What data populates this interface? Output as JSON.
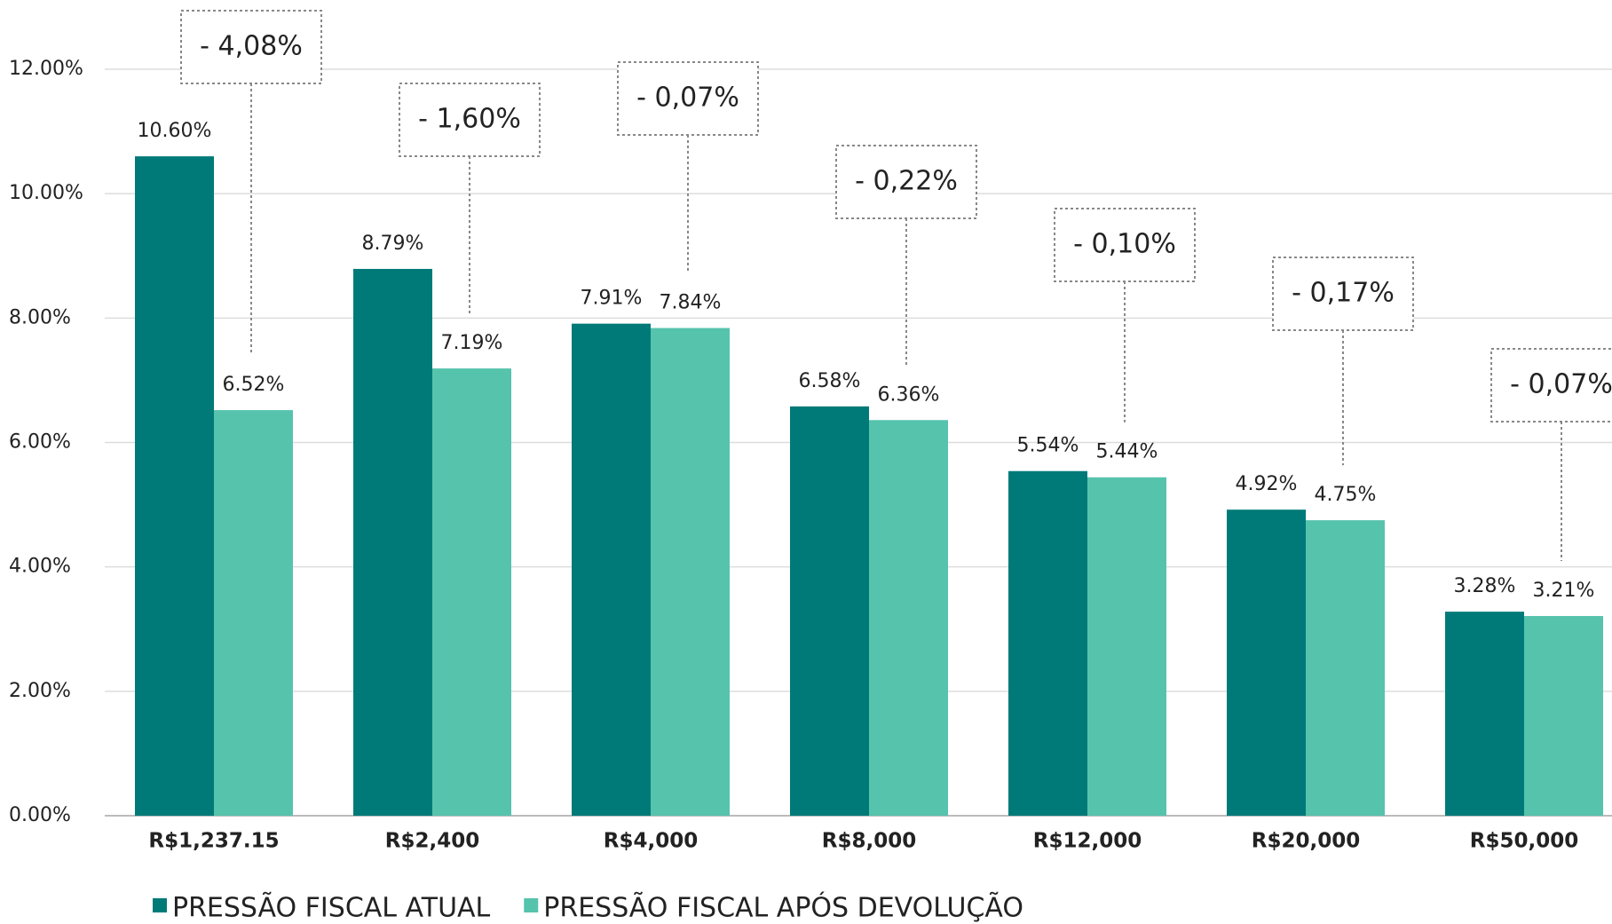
{
  "chart_data": {
    "type": "bar",
    "categories": [
      "R$1,237.15",
      "R$2,400",
      "R$4,000",
      "R$8,000",
      "R$12,000",
      "R$20,000",
      "R$50,000"
    ],
    "series": [
      {
        "name": "PRESSÃO FISCAL ATUAL",
        "color": "#007a78",
        "values": [
          10.6,
          8.79,
          7.91,
          6.58,
          5.54,
          4.92,
          3.28
        ],
        "value_labels": [
          "10.60%",
          "8.79%",
          "7.91%",
          "6.58%",
          "5.54%",
          "4.92%",
          "3.28%"
        ]
      },
      {
        "name": "PRESSÃO FISCAL APÓS DEVOLUÇÃO",
        "color": "#56c3ad",
        "values": [
          6.52,
          7.19,
          7.84,
          6.36,
          5.44,
          4.75,
          3.21
        ],
        "value_labels": [
          "6.52%",
          "7.19%",
          "7.84%",
          "6.36%",
          "5.44%",
          "4.75%",
          "3.21%"
        ]
      }
    ],
    "annotations": [
      "- 4,08%",
      "- 1,60%",
      "- 0,07%",
      "- 0,22%",
      "- 0,10%",
      "- 0,17%",
      "- 0,07%"
    ],
    "ylim": [
      0,
      12
    ],
    "yticks": [
      {
        "value": 0,
        "label": "0.00%"
      },
      {
        "value": 2,
        "label": "2.00%"
      },
      {
        "value": 4,
        "label": "4.00%"
      },
      {
        "value": 6,
        "label": "6.00%"
      },
      {
        "value": 8,
        "label": "8.00%"
      },
      {
        "value": 10,
        "label": "10.00%"
      },
      {
        "value": 12,
        "label": "12.00%"
      }
    ],
    "grid": true,
    "legend": "bottom"
  }
}
